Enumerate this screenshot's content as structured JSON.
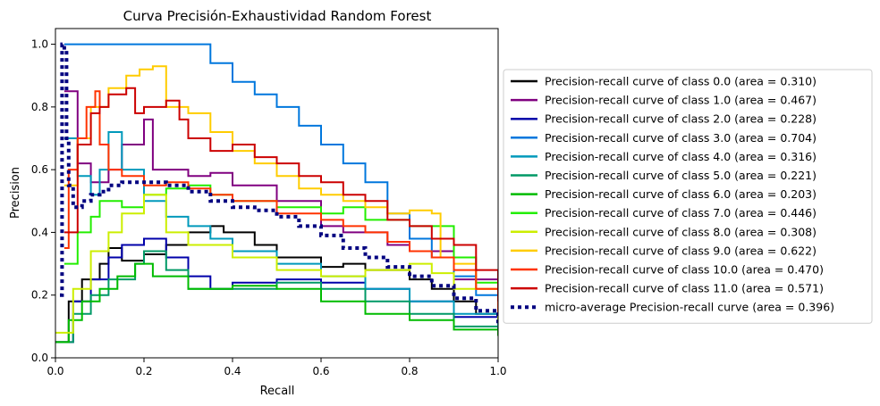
{
  "chart_data": {
    "type": "line",
    "title": "Curva Precisión-Exhaustividad Random Forest",
    "xlabel": "Recall",
    "ylabel": "Precision",
    "xlim": [
      0,
      1
    ],
    "ylim": [
      0,
      1.05
    ],
    "x_ticks": [
      "0.0",
      "0.2",
      "0.4",
      "0.6",
      "0.8",
      "1.0"
    ],
    "y_ticks": [
      "0.0",
      "0.2",
      "0.4",
      "0.6",
      "0.8",
      "1.0"
    ],
    "grid": false,
    "legend_position": "outside-right",
    "series": [
      {
        "name": "Precision-recall curve of class 0.0 (area = 0.310)",
        "color": "#000000",
        "style": "solid",
        "points": [
          [
            0,
            0.05
          ],
          [
            0.03,
            0.18
          ],
          [
            0.06,
            0.25
          ],
          [
            0.1,
            0.3
          ],
          [
            0.12,
            0.35
          ],
          [
            0.15,
            0.31
          ],
          [
            0.2,
            0.33
          ],
          [
            0.25,
            0.36
          ],
          [
            0.3,
            0.4
          ],
          [
            0.35,
            0.42
          ],
          [
            0.38,
            0.4
          ],
          [
            0.45,
            0.36
          ],
          [
            0.5,
            0.32
          ],
          [
            0.6,
            0.29
          ],
          [
            0.65,
            0.3
          ],
          [
            0.7,
            0.28
          ],
          [
            0.8,
            0.25
          ],
          [
            0.85,
            0.22
          ],
          [
            0.9,
            0.18
          ],
          [
            0.95,
            0.14
          ],
          [
            1.0,
            0.1
          ]
        ]
      },
      {
        "name": "Precision-recall curve of class 1.0 (area = 0.467)",
        "color": "#800080",
        "style": "solid",
        "points": [
          [
            0.02,
            0.85
          ],
          [
            0.05,
            0.62
          ],
          [
            0.08,
            0.56
          ],
          [
            0.12,
            0.6
          ],
          [
            0.15,
            0.68
          ],
          [
            0.2,
            0.76
          ],
          [
            0.22,
            0.6
          ],
          [
            0.3,
            0.58
          ],
          [
            0.35,
            0.59
          ],
          [
            0.4,
            0.55
          ],
          [
            0.5,
            0.5
          ],
          [
            0.6,
            0.42
          ],
          [
            0.65,
            0.4
          ],
          [
            0.75,
            0.36
          ],
          [
            0.8,
            0.34
          ],
          [
            0.9,
            0.25
          ],
          [
            1.0,
            0.14
          ]
        ]
      },
      {
        "name": "Precision-recall curve of class 2.0 (area = 0.228)",
        "color": "#0000aa",
        "style": "solid",
        "points": [
          [
            0,
            0.05
          ],
          [
            0.04,
            0.18
          ],
          [
            0.08,
            0.25
          ],
          [
            0.12,
            0.32
          ],
          [
            0.15,
            0.36
          ],
          [
            0.2,
            0.38
          ],
          [
            0.25,
            0.32
          ],
          [
            0.3,
            0.26
          ],
          [
            0.35,
            0.22
          ],
          [
            0.4,
            0.24
          ],
          [
            0.5,
            0.25
          ],
          [
            0.6,
            0.24
          ],
          [
            0.7,
            0.22
          ],
          [
            0.8,
            0.18
          ],
          [
            0.9,
            0.13
          ],
          [
            1.0,
            0.09
          ]
        ]
      },
      {
        "name": "Precision-recall curve of class 3.0 (area = 0.704)",
        "color": "#0077dd",
        "style": "solid",
        "points": [
          [
            0.02,
            1.0
          ],
          [
            0.33,
            1.0
          ],
          [
            0.35,
            0.94
          ],
          [
            0.38,
            0.94
          ],
          [
            0.4,
            0.88
          ],
          [
            0.45,
            0.84
          ],
          [
            0.5,
            0.8
          ],
          [
            0.55,
            0.74
          ],
          [
            0.6,
            0.68
          ],
          [
            0.65,
            0.62
          ],
          [
            0.7,
            0.56
          ],
          [
            0.75,
            0.46
          ],
          [
            0.8,
            0.38
          ],
          [
            0.85,
            0.32
          ],
          [
            0.9,
            0.26
          ],
          [
            0.95,
            0.2
          ],
          [
            1.0,
            0.14
          ]
        ]
      },
      {
        "name": "Precision-recall curve of class 4.0 (area = 0.316)",
        "color": "#0099bb",
        "style": "solid",
        "points": [
          [
            0.02,
            0.7
          ],
          [
            0.05,
            0.58
          ],
          [
            0.08,
            0.52
          ],
          [
            0.1,
            0.6
          ],
          [
            0.12,
            0.72
          ],
          [
            0.15,
            0.6
          ],
          [
            0.2,
            0.5
          ],
          [
            0.25,
            0.45
          ],
          [
            0.3,
            0.42
          ],
          [
            0.35,
            0.38
          ],
          [
            0.4,
            0.34
          ],
          [
            0.5,
            0.3
          ],
          [
            0.6,
            0.26
          ],
          [
            0.7,
            0.22
          ],
          [
            0.8,
            0.18
          ],
          [
            0.9,
            0.14
          ],
          [
            1.0,
            0.1
          ]
        ]
      },
      {
        "name": "Precision-recall curve of class 5.0 (area = 0.221)",
        "color": "#009966",
        "style": "solid",
        "points": [
          [
            0,
            0.05
          ],
          [
            0.04,
            0.14
          ],
          [
            0.08,
            0.2
          ],
          [
            0.12,
            0.25
          ],
          [
            0.18,
            0.3
          ],
          [
            0.2,
            0.34
          ],
          [
            0.25,
            0.28
          ],
          [
            0.3,
            0.22
          ],
          [
            0.4,
            0.22
          ],
          [
            0.5,
            0.24
          ],
          [
            0.6,
            0.22
          ],
          [
            0.7,
            0.18
          ],
          [
            0.8,
            0.14
          ],
          [
            0.9,
            0.1
          ],
          [
            1.0,
            0.08
          ]
        ]
      },
      {
        "name": "Precision-recall curve of class 6.0 (area = 0.203)",
        "color": "#00bb00",
        "style": "solid",
        "points": [
          [
            0,
            0.05
          ],
          [
            0.03,
            0.12
          ],
          [
            0.06,
            0.18
          ],
          [
            0.1,
            0.22
          ],
          [
            0.14,
            0.26
          ],
          [
            0.18,
            0.3
          ],
          [
            0.22,
            0.26
          ],
          [
            0.3,
            0.22
          ],
          [
            0.4,
            0.23
          ],
          [
            0.5,
            0.22
          ],
          [
            0.6,
            0.18
          ],
          [
            0.7,
            0.14
          ],
          [
            0.8,
            0.12
          ],
          [
            0.9,
            0.09
          ],
          [
            1.0,
            0.07
          ]
        ]
      },
      {
        "name": "Precision-recall curve of class 7.0 (area = 0.446)",
        "color": "#22ee00",
        "style": "solid",
        "points": [
          [
            0.02,
            0.3
          ],
          [
            0.05,
            0.4
          ],
          [
            0.08,
            0.45
          ],
          [
            0.1,
            0.5
          ],
          [
            0.15,
            0.48
          ],
          [
            0.2,
            0.52
          ],
          [
            0.25,
            0.54
          ],
          [
            0.3,
            0.55
          ],
          [
            0.35,
            0.52
          ],
          [
            0.4,
            0.5
          ],
          [
            0.5,
            0.48
          ],
          [
            0.6,
            0.46
          ],
          [
            0.65,
            0.48
          ],
          [
            0.7,
            0.44
          ],
          [
            0.8,
            0.42
          ],
          [
            0.9,
            0.32
          ],
          [
            0.95,
            0.24
          ],
          [
            1.0,
            0.15
          ]
        ]
      },
      {
        "name": "Precision-recall curve of class 8.0 (area = 0.308)",
        "color": "#ccee00",
        "style": "solid",
        "points": [
          [
            0,
            0.08
          ],
          [
            0.04,
            0.22
          ],
          [
            0.08,
            0.34
          ],
          [
            0.12,
            0.4
          ],
          [
            0.15,
            0.46
          ],
          [
            0.2,
            0.52
          ],
          [
            0.25,
            0.4
          ],
          [
            0.3,
            0.36
          ],
          [
            0.4,
            0.32
          ],
          [
            0.5,
            0.28
          ],
          [
            0.6,
            0.26
          ],
          [
            0.7,
            0.28
          ],
          [
            0.8,
            0.3
          ],
          [
            0.85,
            0.27
          ],
          [
            0.9,
            0.22
          ],
          [
            1.0,
            0.12
          ]
        ]
      },
      {
        "name": "Precision-recall curve of class 9.0 (area = 0.622)",
        "color": "#ffcc00",
        "style": "solid",
        "points": [
          [
            0.02,
            0.55
          ],
          [
            0.05,
            0.7
          ],
          [
            0.08,
            0.8
          ],
          [
            0.12,
            0.86
          ],
          [
            0.16,
            0.9
          ],
          [
            0.19,
            0.92
          ],
          [
            0.22,
            0.93
          ],
          [
            0.25,
            0.8
          ],
          [
            0.3,
            0.78
          ],
          [
            0.35,
            0.72
          ],
          [
            0.4,
            0.66
          ],
          [
            0.45,
            0.62
          ],
          [
            0.5,
            0.58
          ],
          [
            0.55,
            0.54
          ],
          [
            0.6,
            0.52
          ],
          [
            0.65,
            0.5
          ],
          [
            0.7,
            0.48
          ],
          [
            0.75,
            0.46
          ],
          [
            0.8,
            0.47
          ],
          [
            0.85,
            0.46
          ],
          [
            0.87,
            0.32
          ],
          [
            0.9,
            0.3
          ],
          [
            0.95,
            0.22
          ],
          [
            1.0,
            0.16
          ]
        ]
      },
      {
        "name": "Precision-recall curve of class 10.0 (area = 0.470)",
        "color": "#ff3300",
        "style": "solid",
        "points": [
          [
            0.02,
            0.35
          ],
          [
            0.03,
            0.6
          ],
          [
            0.05,
            0.7
          ],
          [
            0.07,
            0.8
          ],
          [
            0.09,
            0.85
          ],
          [
            0.1,
            0.68
          ],
          [
            0.12,
            0.6
          ],
          [
            0.15,
            0.58
          ],
          [
            0.2,
            0.55
          ],
          [
            0.25,
            0.56
          ],
          [
            0.3,
            0.54
          ],
          [
            0.35,
            0.52
          ],
          [
            0.4,
            0.5
          ],
          [
            0.5,
            0.46
          ],
          [
            0.6,
            0.44
          ],
          [
            0.65,
            0.42
          ],
          [
            0.7,
            0.4
          ],
          [
            0.75,
            0.37
          ],
          [
            0.8,
            0.34
          ],
          [
            0.85,
            0.32
          ],
          [
            0.9,
            0.28
          ],
          [
            0.95,
            0.22
          ],
          [
            1.0,
            0.14
          ]
        ]
      },
      {
        "name": "Precision-recall curve of class 11.0 (area = 0.571)",
        "color": "#cc0000",
        "style": "solid",
        "points": [
          [
            0.02,
            0.4
          ],
          [
            0.05,
            0.68
          ],
          [
            0.08,
            0.78
          ],
          [
            0.1,
            0.8
          ],
          [
            0.12,
            0.84
          ],
          [
            0.16,
            0.86
          ],
          [
            0.18,
            0.78
          ],
          [
            0.2,
            0.8
          ],
          [
            0.25,
            0.82
          ],
          [
            0.28,
            0.76
          ],
          [
            0.3,
            0.7
          ],
          [
            0.35,
            0.66
          ],
          [
            0.4,
            0.68
          ],
          [
            0.45,
            0.64
          ],
          [
            0.5,
            0.62
          ],
          [
            0.55,
            0.58
          ],
          [
            0.6,
            0.56
          ],
          [
            0.65,
            0.52
          ],
          [
            0.7,
            0.5
          ],
          [
            0.75,
            0.44
          ],
          [
            0.8,
            0.42
          ],
          [
            0.85,
            0.38
          ],
          [
            0.9,
            0.36
          ],
          [
            0.95,
            0.28
          ],
          [
            1.0,
            0.18
          ]
        ]
      },
      {
        "name": "micro-average Precision-recall curve (area = 0.396)",
        "color": "#000080",
        "style": "dotted",
        "points": [
          [
            0.01,
            0.2
          ],
          [
            0.015,
            1.0
          ],
          [
            0.02,
            0.98
          ],
          [
            0.025,
            0.7
          ],
          [
            0.03,
            0.55
          ],
          [
            0.04,
            0.48
          ],
          [
            0.06,
            0.5
          ],
          [
            0.08,
            0.52
          ],
          [
            0.1,
            0.53
          ],
          [
            0.12,
            0.55
          ],
          [
            0.15,
            0.56
          ],
          [
            0.2,
            0.56
          ],
          [
            0.25,
            0.55
          ],
          [
            0.3,
            0.53
          ],
          [
            0.35,
            0.5
          ],
          [
            0.4,
            0.48
          ],
          [
            0.45,
            0.47
          ],
          [
            0.5,
            0.45
          ],
          [
            0.55,
            0.42
          ],
          [
            0.6,
            0.39
          ],
          [
            0.65,
            0.35
          ],
          [
            0.7,
            0.32
          ],
          [
            0.75,
            0.29
          ],
          [
            0.8,
            0.26
          ],
          [
            0.85,
            0.23
          ],
          [
            0.9,
            0.19
          ],
          [
            0.95,
            0.15
          ],
          [
            1.0,
            0.11
          ]
        ]
      }
    ]
  }
}
